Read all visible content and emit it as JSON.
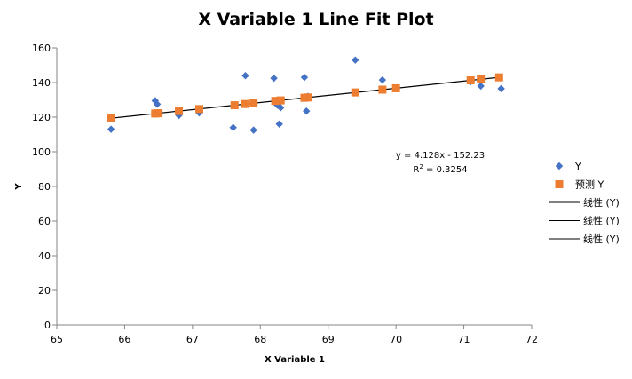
{
  "chart_data": {
    "type": "scatter",
    "title": "X Variable 1 Line Fit  Plot",
    "xlabel": "X Variable 1",
    "ylabel": "Y",
    "xlim": [
      65,
      72
    ],
    "ylim": [
      0,
      160
    ],
    "xticks": [
      65,
      66,
      67,
      68,
      69,
      70,
      71,
      72
    ],
    "yticks": [
      0,
      20,
      40,
      60,
      80,
      100,
      120,
      140,
      160
    ],
    "series": [
      {
        "name": "Y",
        "marker": "diamond",
        "color": "#4472C4",
        "points": [
          [
            65.8,
            113
          ],
          [
            66.45,
            129.5
          ],
          [
            66.48,
            127.5
          ],
          [
            66.8,
            121
          ],
          [
            67.1,
            122.5
          ],
          [
            67.6,
            114
          ],
          [
            67.78,
            144
          ],
          [
            67.9,
            112.5
          ],
          [
            68.2,
            142.5
          ],
          [
            68.25,
            127
          ],
          [
            68.28,
            116
          ],
          [
            68.3,
            125.5
          ],
          [
            68.65,
            143
          ],
          [
            68.68,
            123.5
          ],
          [
            68.7,
            132
          ],
          [
            69.4,
            153
          ],
          [
            69.8,
            141.5
          ],
          [
            71.1,
            140.5
          ],
          [
            71.25,
            138
          ],
          [
            71.55,
            136.5
          ]
        ]
      },
      {
        "name": "预测 Y",
        "marker": "square",
        "color": "#ED7D31",
        "points": [
          [
            65.8,
            119.4
          ],
          [
            66.45,
            122.1
          ],
          [
            66.5,
            122.3
          ],
          [
            66.8,
            123.5
          ],
          [
            67.1,
            124.7
          ],
          [
            67.62,
            126.9
          ],
          [
            67.78,
            127.6
          ],
          [
            67.9,
            128.1
          ],
          [
            68.22,
            129.4
          ],
          [
            68.3,
            129.7
          ],
          [
            68.65,
            131.2
          ],
          [
            68.7,
            131.4
          ],
          [
            69.4,
            134.3
          ],
          [
            69.8,
            135.9
          ],
          [
            70.0,
            136.7
          ],
          [
            71.1,
            141.3
          ],
          [
            71.25,
            141.9
          ],
          [
            71.52,
            143.0
          ]
        ]
      }
    ],
    "trendline": {
      "slope": 4.128,
      "intercept": -152.23,
      "x_range": [
        65.8,
        71.52
      ],
      "equation_label": "y = 4.128x - 152.23",
      "r2_prefix": "R",
      "r2_sup": "2",
      "r2_value": " = 0.3254"
    },
    "legend": {
      "position": "right",
      "items": [
        {
          "label": "Y",
          "kind": "diamond"
        },
        {
          "label": "预测 Y",
          "kind": "square"
        },
        {
          "label": "线性 (Y)",
          "kind": "line"
        },
        {
          "label": "线性 (Y)",
          "kind": "line"
        },
        {
          "label": "线性 (Y)",
          "kind": "line"
        }
      ]
    }
  }
}
